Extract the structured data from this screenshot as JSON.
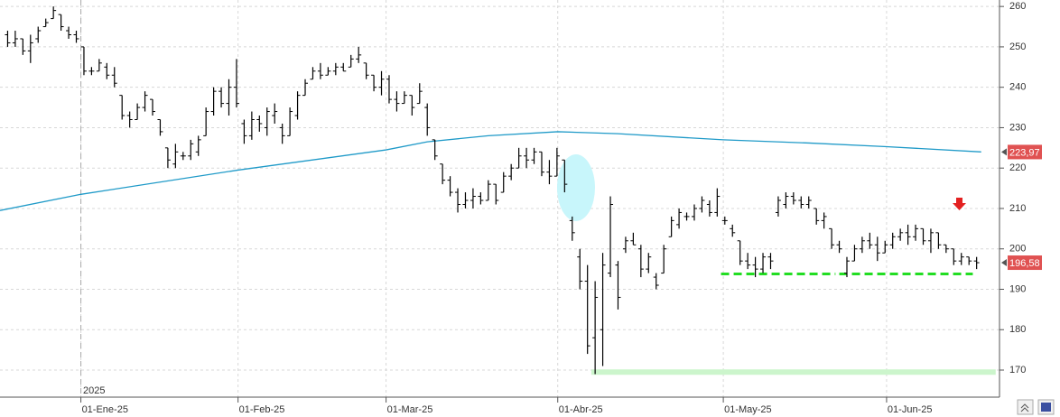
{
  "chart_data": {
    "type": "ohlc",
    "xlim": [
      -1,
      130
    ],
    "xticks": [
      {
        "value": 9.6,
        "label": "01-Ene-25"
      },
      {
        "value": 30.2,
        "label": "01-Feb-25"
      },
      {
        "value": 49.6,
        "label": "01-Mar-25"
      },
      {
        "value": 72.1,
        "label": "01-Abr-25"
      },
      {
        "value": 93.8,
        "label": "01-May-25"
      },
      {
        "value": 115.2,
        "label": "01-Jun-25"
      }
    ],
    "year_marker": {
      "value": 9.6,
      "label": "2025"
    },
    "ylim": [
      163.3,
      261.6
    ],
    "yticks": [
      170,
      180,
      190,
      200,
      210,
      220,
      230,
      240,
      250,
      260
    ],
    "grid": true,
    "color": "#000000",
    "high": [
      254,
      254,
      252,
      253,
      255,
      257,
      260,
      258,
      255,
      254,
      250,
      245,
      247,
      246,
      245,
      238,
      234,
      236,
      239,
      237,
      232,
      225,
      226,
      224,
      227,
      228,
      235,
      240,
      240,
      242,
      247,
      232,
      234,
      233,
      235,
      236,
      231,
      235,
      239,
      242,
      245,
      246,
      245,
      246,
      246,
      248,
      250,
      246,
      243,
      244,
      243,
      239,
      239,
      238,
      241,
      236,
      227,
      221,
      218,
      215,
      214,
      215,
      214,
      217,
      216,
      219,
      221,
      225,
      225,
      225,
      224,
      222,
      225,
      222,
      208,
      200,
      196,
      192,
      199,
      213,
      197,
      203,
      204,
      201,
      199,
      194,
      201,
      208,
      210,
      209,
      211,
      213,
      212,
      215,
      208,
      206,
      202,
      199,
      198,
      199,
      199,
      213,
      214,
      214,
      213,
      213,
      210,
      209,
      205,
      202,
      198,
      201,
      203,
      204,
      203,
      202,
      204,
      205,
      206,
      206,
      205,
      205,
      204,
      201,
      200,
      199,
      198,
      198
    ],
    "low": [
      250,
      250,
      248,
      246,
      251,
      255,
      257,
      254,
      252,
      251,
      243,
      243,
      244,
      242,
      240,
      232,
      230,
      232,
      234,
      233,
      228,
      220,
      220,
      222,
      222,
      223,
      228,
      233,
      235,
      233,
      235,
      226,
      227,
      229,
      228,
      231,
      226,
      228,
      232,
      238,
      242,
      242,
      243,
      243,
      244,
      245,
      246,
      242,
      239,
      238,
      236,
      234,
      236,
      233,
      236,
      228,
      222,
      216,
      213,
      209,
      210,
      210,
      211,
      212,
      211,
      214,
      217,
      220,
      220,
      221,
      218,
      216,
      218,
      214,
      202,
      190,
      174,
      169,
      171,
      193,
      185,
      199,
      201,
      193,
      194,
      190,
      194,
      203,
      205,
      207,
      207,
      209,
      208,
      208,
      206,
      203,
      196,
      195,
      193,
      194,
      195,
      208,
      210,
      211,
      210,
      210,
      206,
      205,
      200,
      199,
      193,
      197,
      199,
      200,
      197,
      199,
      200,
      202,
      201,
      202,
      201,
      199,
      200,
      199,
      196,
      196,
      196,
      195
    ],
    "open": [
      253,
      251,
      252,
      249,
      252,
      255,
      257,
      258,
      254,
      253,
      250,
      244,
      244,
      245,
      243,
      238,
      233,
      232,
      235,
      237,
      232,
      225,
      221,
      223,
      223,
      224,
      228,
      234,
      239,
      236,
      240,
      231,
      228,
      232,
      230,
      233,
      230,
      228,
      233,
      238,
      242,
      244,
      243,
      244,
      245,
      245,
      247,
      246,
      243,
      240,
      242,
      237,
      236,
      238,
      236,
      235,
      227,
      221,
      217,
      214,
      211,
      212,
      213,
      212,
      216,
      214,
      218,
      220,
      223,
      222,
      224,
      219,
      218,
      222,
      207,
      198,
      192,
      178,
      180,
      194,
      196,
      200,
      202,
      200,
      195,
      193,
      194,
      203,
      206,
      208,
      208,
      210,
      211,
      209,
      207,
      205,
      202,
      197,
      196,
      195,
      198,
      209,
      211,
      213,
      212,
      211,
      210,
      207,
      205,
      201,
      194,
      197,
      200,
      202,
      201,
      199,
      201,
      203,
      204,
      203,
      205,
      202,
      204,
      201,
      200,
      197,
      198,
      197
    ],
    "close": [
      251,
      252,
      249,
      251,
      254,
      256,
      259,
      255,
      253,
      252,
      244,
      244,
      246,
      243,
      241,
      233,
      232,
      235,
      238,
      234,
      229,
      222,
      224,
      223,
      226,
      227,
      234,
      239,
      236,
      240,
      236,
      228,
      232,
      231,
      234,
      234,
      228,
      234,
      238,
      241,
      244,
      243,
      244,
      245,
      244,
      247,
      248,
      243,
      240,
      242,
      237,
      236,
      238,
      235,
      239,
      230,
      223,
      217,
      214,
      211,
      212,
      213,
      212,
      216,
      212,
      218,
      220,
      223,
      222,
      224,
      219,
      218,
      223,
      216,
      204,
      192,
      176,
      188,
      196,
      211,
      188,
      202,
      201,
      195,
      198,
      191,
      200,
      207,
      209,
      208,
      210,
      212,
      209,
      213,
      207,
      204,
      197,
      196,
      195,
      198,
      197,
      212,
      213,
      212,
      211,
      212,
      207,
      208,
      201,
      200,
      197,
      200,
      202,
      201,
      199,
      201,
      203,
      204,
      203,
      205,
      202,
      204,
      201,
      200,
      197,
      198,
      197,
      196.58
    ],
    "ma": {
      "color": "#1f9ac8",
      "x": [
        -1,
        9.6,
        30.2,
        49.6,
        55,
        63,
        72.1,
        80,
        93.8,
        105,
        115.2,
        127.6
      ],
      "values": [
        209.5,
        213.5,
        219.5,
        224.5,
        226.5,
        228,
        229,
        228.5,
        227,
        226.2,
        225.3,
        224
      ]
    },
    "price_labels": [
      {
        "value": 223.97,
        "label": "223,97"
      },
      {
        "value": 196.58,
        "label": "196,58"
      }
    ],
    "label_color": "#e05252",
    "support_lines": [
      {
        "value": 193.8,
        "x": [
          93.5,
          108.5
        ]
      },
      {
        "value": 193.8,
        "x": [
          109,
          126.5
        ]
      }
    ],
    "support_color": "#22dd22",
    "floor_band": {
      "value": 169.5,
      "x": [
        76.5,
        129.5
      ],
      "color": "#ccf5cc"
    }
  }
}
